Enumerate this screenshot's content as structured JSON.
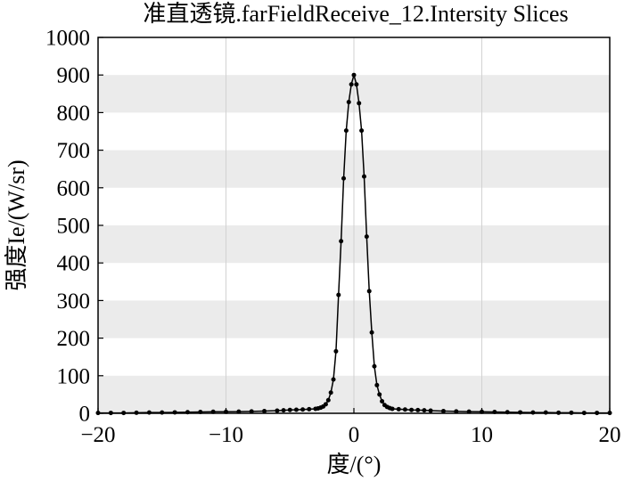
{
  "chart_data": {
    "type": "line",
    "title": "准直透镜.farFieldReceive_12.Intersity Slices",
    "xlabel": "度/(°)",
    "ylabel": "强度Ie/(W/sr)",
    "xlim": [
      -20,
      20
    ],
    "ylim": [
      0,
      1000
    ],
    "x_ticks": [
      -20,
      -10,
      0,
      10,
      20
    ],
    "x_tick_labels": [
      "−20",
      "−10",
      "0",
      "10",
      "20"
    ],
    "y_ticks": [
      0,
      100,
      200,
      300,
      400,
      500,
      600,
      700,
      800,
      900,
      1000
    ],
    "y_tick_labels": [
      "0",
      "100",
      "200",
      "300",
      "400",
      "500",
      "600",
      "700",
      "800",
      "900",
      "1000"
    ],
    "grid": true,
    "banded_background": true,
    "markers": true,
    "colors": {
      "line": "#000000",
      "marker": "#000000",
      "band": "#ebebeb",
      "grid": "#d2d2d2",
      "frame": "#000000"
    },
    "series": [
      {
        "x": [
          -20,
          -19,
          -18,
          -17,
          -16,
          -15,
          -14,
          -13,
          -12,
          -11,
          -10,
          -9,
          -8,
          -7,
          -6,
          -5.5,
          -5,
          -4.5,
          -4,
          -3.5,
          -3,
          -2.8,
          -2.6,
          -2.4,
          -2.2,
          -2,
          -1.8,
          -1.6,
          -1.4,
          -1.2,
          -1,
          -0.8,
          -0.6,
          -0.4,
          -0.2,
          0,
          0.2,
          0.4,
          0.6,
          0.8,
          1,
          1.2,
          1.4,
          1.6,
          1.8,
          2,
          2.2,
          2.4,
          2.6,
          2.8,
          3,
          3.5,
          4,
          4.5,
          5,
          5.5,
          6,
          7,
          8,
          9,
          10,
          11,
          12,
          13,
          14,
          15,
          16,
          17,
          18,
          19,
          20
        ],
        "y": [
          1,
          1,
          1,
          1.5,
          2,
          2,
          2.5,
          3,
          3.5,
          4,
          4,
          4.5,
          5,
          6,
          7,
          8,
          9,
          9.5,
          10,
          11,
          12,
          13,
          15,
          18,
          24,
          35,
          55,
          90,
          165,
          315,
          458,
          625,
          752,
          828,
          875,
          900,
          875,
          825,
          752,
          630,
          470,
          325,
          215,
          125,
          75,
          50,
          32,
          22,
          17,
          14,
          12,
          11,
          10,
          9,
          8.5,
          8,
          7,
          6,
          5,
          4.5,
          4,
          3.5,
          3,
          2.5,
          2,
          2,
          1.5,
          1.5,
          1,
          1,
          1
        ]
      }
    ]
  }
}
